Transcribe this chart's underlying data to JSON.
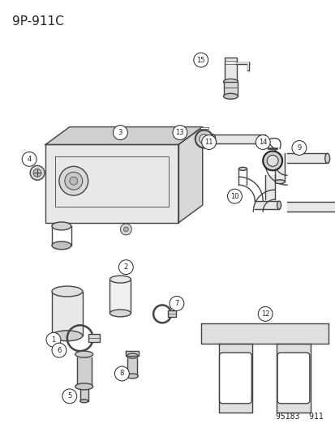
{
  "title": "9P-911C",
  "footer": "95183  911",
  "bg_color": "#ffffff",
  "title_fontsize": 11,
  "footer_fontsize": 7,
  "fig_width": 4.14,
  "fig_height": 5.33,
  "dpi": 100
}
